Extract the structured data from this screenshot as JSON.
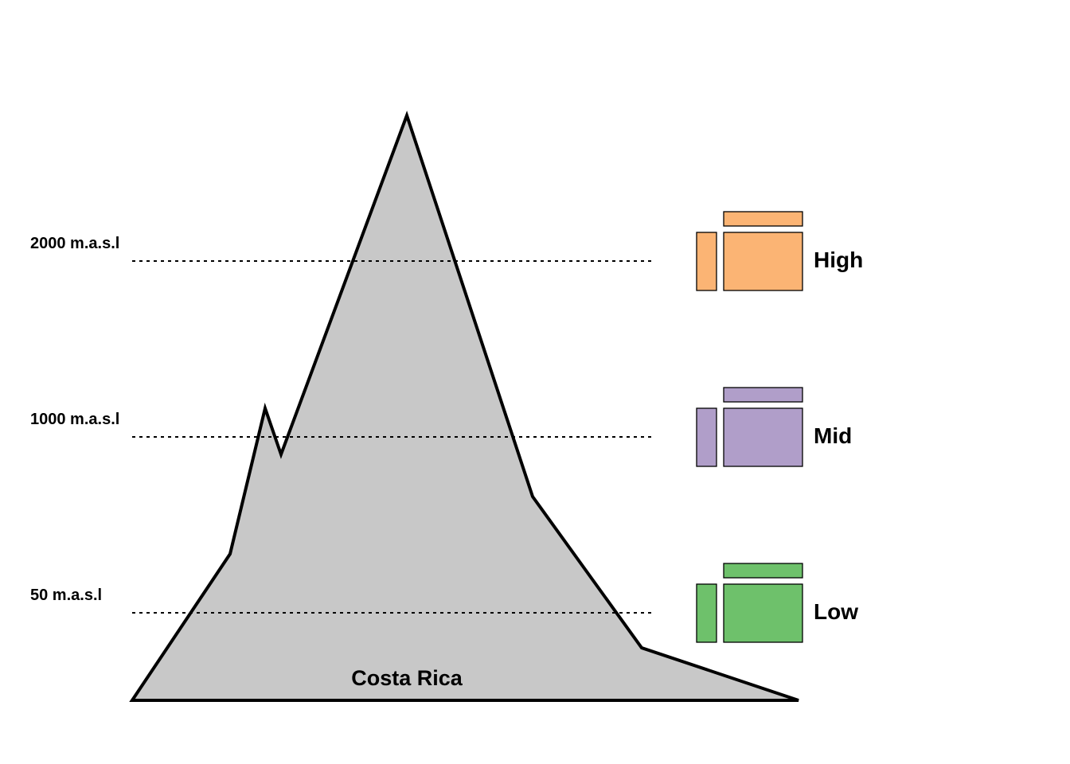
{
  "country": {
    "label": "Costa Rica"
  },
  "mountain": {
    "fill_color": "#c8c8c8",
    "outline_color": "#000000"
  },
  "elevations": [
    {
      "label": "2000 m.a.s.l",
      "zone": "High",
      "color": "#fbb474"
    },
    {
      "label": "1000 m.a.s.l",
      "zone": "Mid",
      "color": "#b09ec9"
    },
    {
      "label": "50 m.a.s.l",
      "zone": "Low",
      "color": "#6ec16b"
    }
  ]
}
